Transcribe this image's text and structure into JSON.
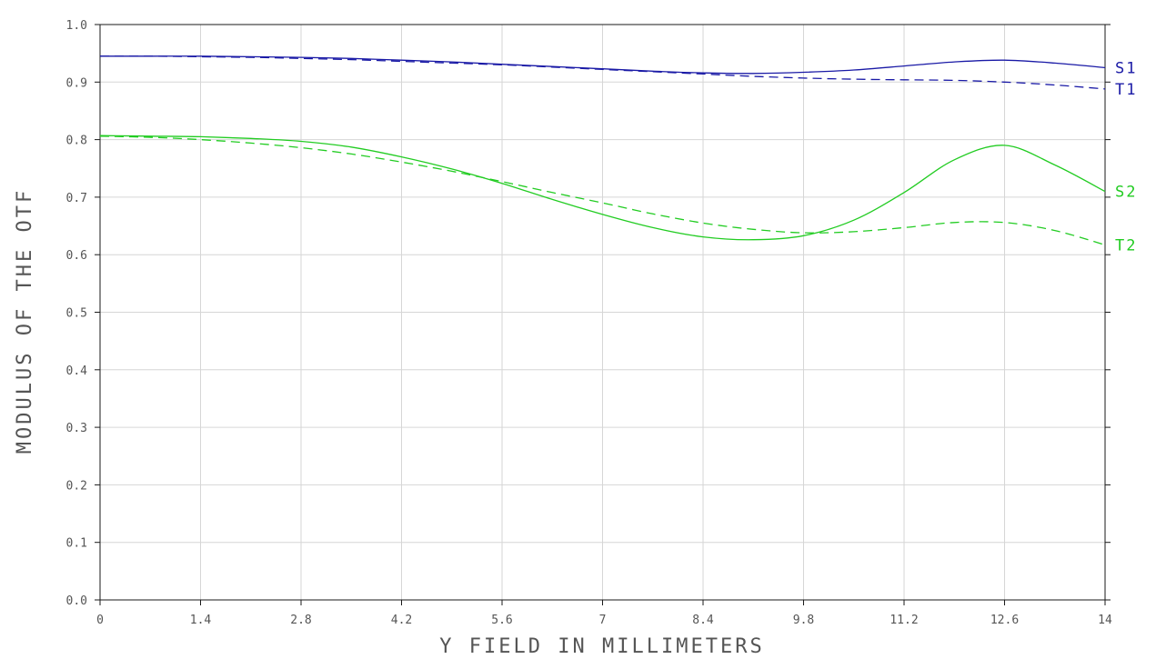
{
  "chart_data": {
    "type": "line",
    "xlabel": "Y FIELD IN MILLIMETERS",
    "ylabel": "MODULUS OF THE OTF",
    "xlim": [
      0,
      14
    ],
    "ylim": [
      0,
      1.0
    ],
    "x_ticks": [
      "0",
      "1.4",
      "2.8",
      "4.2",
      "5.6",
      "7",
      "8.4",
      "9.8",
      "11.2",
      "12.6",
      "14"
    ],
    "y_ticks": [
      "0.0",
      "0.1",
      "0.2",
      "0.3",
      "0.4",
      "0.5",
      "0.6",
      "0.7",
      "0.8",
      "0.9",
      "1.0"
    ],
    "grid": true,
    "series": [
      {
        "name": "S1",
        "color": "#1a1aa6",
        "dashed": false,
        "x": [
          0,
          0.7,
          1.4,
          2.1,
          2.8,
          3.5,
          4.2,
          4.9,
          5.6,
          6.3,
          7,
          7.7,
          8.4,
          9.1,
          9.8,
          10.5,
          11.2,
          11.9,
          12.6,
          13.3,
          14
        ],
        "y": [
          0.945,
          0.945,
          0.945,
          0.944,
          0.943,
          0.941,
          0.938,
          0.935,
          0.931,
          0.927,
          0.923,
          0.919,
          0.916,
          0.915,
          0.917,
          0.921,
          0.928,
          0.935,
          0.938,
          0.933,
          0.925
        ]
      },
      {
        "name": "T1",
        "color": "#1a1aa6",
        "dashed": true,
        "x": [
          0,
          0.7,
          1.4,
          2.1,
          2.8,
          3.5,
          4.2,
          4.9,
          5.6,
          6.3,
          7,
          7.7,
          8.4,
          9.1,
          9.8,
          10.5,
          11.2,
          11.9,
          12.6,
          13.3,
          14
        ],
        "y": [
          0.945,
          0.945,
          0.944,
          0.943,
          0.941,
          0.939,
          0.936,
          0.933,
          0.93,
          0.926,
          0.922,
          0.918,
          0.914,
          0.91,
          0.907,
          0.905,
          0.904,
          0.903,
          0.9,
          0.895,
          0.888
        ]
      },
      {
        "name": "S2",
        "color": "#22cc22",
        "dashed": false,
        "x": [
          0,
          0.7,
          1.4,
          2.1,
          2.8,
          3.5,
          4.2,
          4.9,
          5.6,
          6.3,
          7,
          7.7,
          8.4,
          9.1,
          9.8,
          10.5,
          11.2,
          11.9,
          12.6,
          13.3,
          14
        ],
        "y": [
          0.807,
          0.806,
          0.805,
          0.802,
          0.797,
          0.787,
          0.77,
          0.749,
          0.724,
          0.696,
          0.67,
          0.647,
          0.631,
          0.626,
          0.633,
          0.66,
          0.708,
          0.765,
          0.79,
          0.756,
          0.71
        ]
      },
      {
        "name": "T2",
        "color": "#22cc22",
        "dashed": true,
        "x": [
          0,
          0.7,
          1.4,
          2.1,
          2.8,
          3.5,
          4.2,
          4.9,
          5.6,
          6.3,
          7,
          7.7,
          8.4,
          9.1,
          9.8,
          10.5,
          11.2,
          11.9,
          12.6,
          13.3,
          14
        ],
        "y": [
          0.806,
          0.804,
          0.8,
          0.794,
          0.786,
          0.775,
          0.761,
          0.745,
          0.727,
          0.708,
          0.69,
          0.671,
          0.655,
          0.644,
          0.638,
          0.64,
          0.647,
          0.656,
          0.656,
          0.642,
          0.617
        ]
      }
    ]
  }
}
